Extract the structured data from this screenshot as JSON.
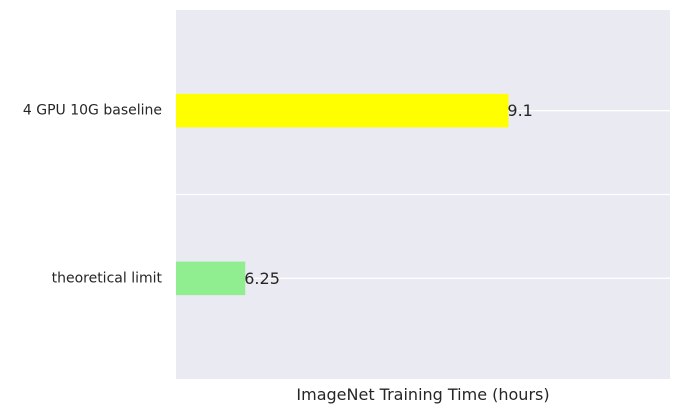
{
  "chart_data": {
    "type": "bar",
    "orientation": "horizontal",
    "title": "",
    "xlabel": "ImageNet Training Time (hours)",
    "ylabel": "",
    "categories": [
      "4 GPU 10G baseline",
      "theoretical limit"
    ],
    "values": [
      9.1,
      6.25
    ],
    "value_labels": [
      "9.1",
      "6.25"
    ],
    "bar_colors": [
      "#ffff00",
      "#90ee90"
    ],
    "xlim": [
      5.5,
      10.85
    ],
    "x_ticks_visible": false,
    "grid": true,
    "legend": "none",
    "background_color": "#eaeaf2",
    "grid_color": "#ffffff"
  }
}
